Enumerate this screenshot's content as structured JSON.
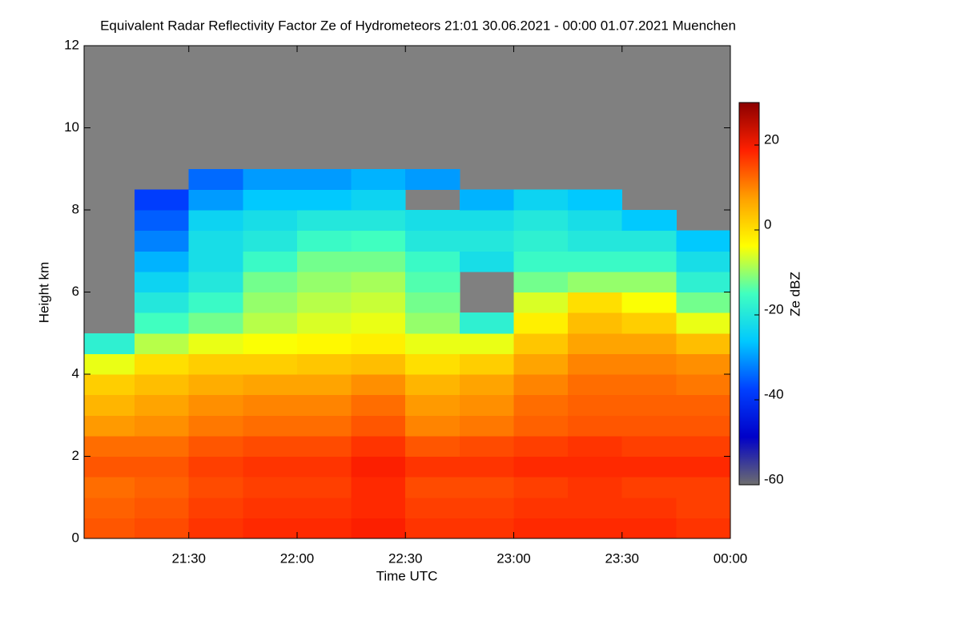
{
  "chart_data": {
    "type": "heatmap",
    "title": "Equivalent Radar Reflectivity Factor Ze of Hydrometeors   21:01 30.06.2021 - 00:00 01.07.2021 Muenchen",
    "x_label": "Time UTC",
    "y_label": "Height km",
    "colorbar_label": "Ze dBZ",
    "x": [
      1,
      15,
      30,
      45,
      60,
      75,
      90,
      105,
      120,
      135,
      150,
      165,
      180
    ],
    "y": [
      0,
      0.5,
      1,
      1.5,
      2,
      2.5,
      3,
      3.5,
      4,
      4.5,
      5,
      5.5,
      6,
      6.5,
      7,
      7.5,
      8,
      8.5,
      9,
      9.5,
      10,
      10.5,
      11,
      11.5,
      12
    ],
    "z": [
      [
        14,
        15,
        17,
        18,
        18,
        19,
        17,
        17,
        18,
        18,
        18,
        17
      ],
      [
        13,
        14,
        16,
        17,
        17,
        18,
        16,
        16,
        17,
        17,
        17,
        16
      ],
      [
        12,
        13,
        15,
        16,
        16,
        18,
        15,
        15,
        16,
        17,
        16,
        16
      ],
      [
        14,
        14,
        16,
        17,
        17,
        19,
        17,
        17,
        18,
        18,
        18,
        18
      ],
      [
        12,
        12,
        14,
        15,
        15,
        17,
        14,
        15,
        16,
        17,
        16,
        16
      ],
      [
        8,
        9,
        11,
        12,
        12,
        14,
        10,
        11,
        13,
        14,
        14,
        14
      ],
      [
        5,
        7,
        9,
        10,
        10,
        12,
        8,
        9,
        12,
        13,
        13,
        13
      ],
      [
        2,
        4,
        6,
        7,
        7,
        9,
        5,
        7,
        10,
        12,
        12,
        11
      ],
      [
        -5,
        0,
        2,
        2,
        3,
        4,
        0,
        2,
        7,
        10,
        10,
        9
      ],
      [
        -18,
        -8,
        -5,
        -4,
        -3,
        -2,
        -5,
        -5,
        3,
        7,
        7,
        4
      ],
      [
        null,
        -15,
        -12,
        -8,
        -6,
        -5,
        -10,
        -18,
        -2,
        4,
        2,
        -5
      ],
      [
        null,
        -20,
        -16,
        -10,
        -8,
        -7,
        -12,
        null,
        -6,
        0,
        -4,
        -12
      ],
      [
        null,
        -24,
        -20,
        -12,
        -10,
        -9,
        -14,
        null,
        -12,
        -10,
        -10,
        -18
      ],
      [
        null,
        -28,
        -22,
        -16,
        -12,
        -12,
        -16,
        -22,
        -16,
        -16,
        -16,
        -22
      ],
      [
        null,
        -32,
        -22,
        -20,
        -16,
        -15,
        -20,
        -20,
        -18,
        -20,
        -20,
        -26
      ],
      [
        null,
        -35,
        -24,
        -22,
        -20,
        -20,
        -22,
        -22,
        -20,
        -22,
        -26,
        null
      ],
      [
        null,
        -38,
        -30,
        -26,
        -26,
        -24,
        null,
        -28,
        -24,
        -26,
        null,
        null
      ],
      [
        null,
        null,
        -34,
        -30,
        -30,
        -28,
        -30,
        null,
        null,
        null,
        null,
        null
      ],
      [
        null,
        null,
        null,
        null,
        null,
        null,
        null,
        null,
        null,
        null,
        null,
        null
      ],
      [
        null,
        null,
        null,
        null,
        null,
        null,
        null,
        null,
        null,
        null,
        null,
        null
      ],
      [
        null,
        null,
        null,
        null,
        null,
        null,
        null,
        null,
        null,
        null,
        null,
        null
      ],
      [
        null,
        null,
        null,
        null,
        null,
        null,
        null,
        null,
        null,
        null,
        null,
        null
      ],
      [
        null,
        null,
        null,
        null,
        null,
        null,
        null,
        null,
        null,
        null,
        null,
        null
      ],
      [
        null,
        null,
        null,
        null,
        null,
        null,
        null,
        null,
        null,
        null,
        null,
        null
      ]
    ],
    "xlim": [
      1,
      180
    ],
    "ylim": [
      0,
      12
    ],
    "zlim": [
      -60,
      30
    ],
    "xticks": [
      {
        "value": 30,
        "label": "21:30"
      },
      {
        "value": 60,
        "label": "22:00"
      },
      {
        "value": 90,
        "label": "22:30"
      },
      {
        "value": 120,
        "label": "23:00"
      },
      {
        "value": 150,
        "label": "23:30"
      },
      {
        "value": 180,
        "label": "00:00"
      }
    ],
    "yticks": [
      0,
      2,
      4,
      6,
      8,
      10,
      12
    ],
    "zticks": [
      -60,
      -40,
      -20,
      0,
      20
    ],
    "colormap": [
      "#6e6e6e",
      "#0000c8",
      "#0040ff",
      "#00c8ff",
      "#40ffc0",
      "#ffff00",
      "#ffa000",
      "#ff2000",
      "#8b0000"
    ],
    "nodata_color": "#808080"
  }
}
